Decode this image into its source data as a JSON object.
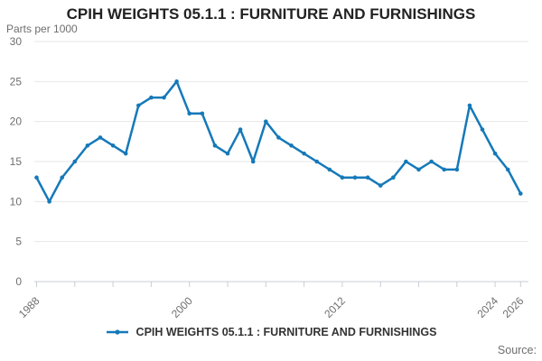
{
  "chart_data": {
    "type": "line",
    "title": "CPIH WEIGHTS 05.1.1 : FURNITURE AND FURNISHINGS",
    "ylabel": "Parts per 1000",
    "x": [
      1988,
      1989,
      1990,
      1991,
      1992,
      1993,
      1994,
      1995,
      1996,
      1997,
      1998,
      1999,
      2000,
      2001,
      2002,
      2003,
      2004,
      2005,
      2006,
      2007,
      2008,
      2009,
      2010,
      2011,
      2012,
      2013,
      2014,
      2015,
      2016,
      2017,
      2018,
      2019,
      2020,
      2021,
      2022,
      2023,
      2024,
      2025,
      2026
    ],
    "series": [
      {
        "name": "CPIH WEIGHTS 05.1.1 : FURNITURE AND FURNISHINGS",
        "color": "#1579b9",
        "values": [
          13,
          10,
          13,
          15,
          17,
          18,
          17,
          16,
          22,
          23,
          23,
          25,
          21,
          21,
          17,
          16,
          19,
          15,
          20,
          18,
          17,
          16,
          15,
          14,
          13,
          13,
          13,
          12,
          13,
          15,
          14,
          15,
          14,
          14,
          22,
          19,
          16,
          14,
          11
        ]
      }
    ],
    "ylim": [
      0,
      30
    ],
    "yticks": [
      0,
      5,
      10,
      15,
      20,
      25,
      30
    ],
    "xticks": [
      1988,
      1991,
      1994,
      1997,
      2000,
      2003,
      2006,
      2009,
      2012,
      2015,
      2018,
      2021,
      2024,
      2026
    ],
    "xtick_labels": [
      1988,
      2000,
      2012,
      2024,
      2026
    ],
    "grid": "horizontal",
    "legend_position": "bottom"
  },
  "footer": {
    "source_label": "Source:"
  }
}
